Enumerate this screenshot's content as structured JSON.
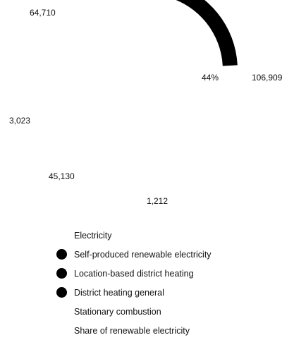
{
  "chart_data": {
    "type": "pie",
    "style": "donut-arcs",
    "series": [
      {
        "name": "Electricity",
        "value": 106909,
        "label": "106,909",
        "color": "#ffffff",
        "visible": false
      },
      {
        "name": "Self-produced renewable electricity",
        "value": 64710,
        "label": "64,710",
        "color": "#000000",
        "visible": false
      },
      {
        "name": "Location-based district heating",
        "value": 3023,
        "label": "3,023",
        "color": "#000000",
        "visible": true
      },
      {
        "name": "District heating general",
        "value": 45130,
        "label": "45,130",
        "color": "#000000",
        "visible": true
      },
      {
        "name": "Stationary combustion",
        "value": 1212,
        "label": "1,212",
        "color": "#ffffff",
        "visible": false
      }
    ],
    "share": {
      "name": "Share of renewable electricity",
      "value": 44,
      "label": "44%"
    },
    "legend_position": "bottom",
    "grid": false
  }
}
